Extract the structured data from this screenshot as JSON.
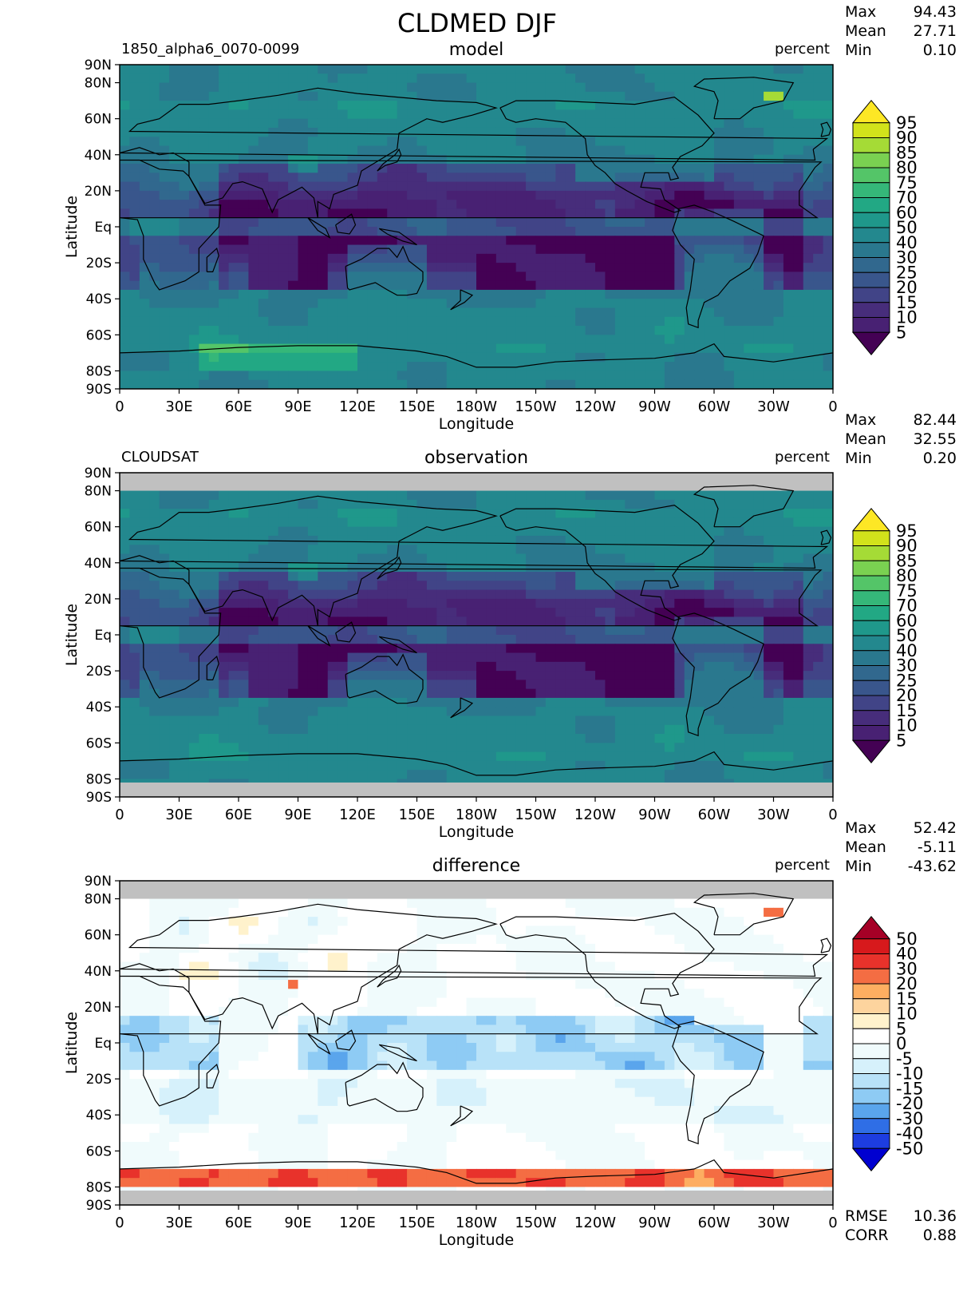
{
  "title": "CLDMED DJF",
  "chart_data": [
    {
      "type": "heatmap",
      "panel": "model",
      "title": "model",
      "left_label": "1850_alpha6_0070-0099",
      "units": "percent",
      "stats": {
        "max_label": "Max",
        "max": "94.43",
        "mean_label": "Mean",
        "mean": "27.71",
        "min_label": "Min",
        "min": "0.10"
      },
      "xlabel": "Longitude",
      "ylabel": "Latitude",
      "xticks": [
        "0",
        "30E",
        "60E",
        "90E",
        "120E",
        "150E",
        "180W",
        "150W",
        "120W",
        "90W",
        "60W",
        "30W",
        "0"
      ],
      "yticks": [
        "90N",
        "80N",
        "60N",
        "40N",
        "20N",
        "Eq",
        "20S",
        "40S",
        "60S",
        "80S",
        "90S"
      ],
      "xlim": [
        0,
        360
      ],
      "ylim": [
        -90,
        90
      ],
      "colorbar": [
        "95",
        "90",
        "85",
        "80",
        "75",
        "70",
        "60",
        "50",
        "40",
        "30",
        "25",
        "20",
        "15",
        "10",
        "5"
      ],
      "colors": [
        "#fde725",
        "#d2e21b",
        "#a5db36",
        "#7ad151",
        "#54c568",
        "#35b779",
        "#22a884",
        "#1f988b",
        "#23888e",
        "#2a788e",
        "#31688e",
        "#39568c",
        "#414487",
        "#472d7b",
        "#482173",
        "#440154"
      ],
      "missing_bands": []
    },
    {
      "type": "heatmap",
      "panel": "observation",
      "title": "observation",
      "left_label": "CLOUDSAT",
      "units": "percent",
      "stats": {
        "max_label": "Max",
        "max": "82.44",
        "mean_label": "Mean",
        "mean": "32.55",
        "min_label": "Min",
        "min": "0.20"
      },
      "xlabel": "Longitude",
      "ylabel": "Latitude",
      "xticks": [
        "0",
        "30E",
        "60E",
        "90E",
        "120E",
        "150E",
        "180W",
        "150W",
        "120W",
        "90W",
        "60W",
        "30W",
        "0"
      ],
      "yticks": [
        "90N",
        "80N",
        "60N",
        "40N",
        "20N",
        "Eq",
        "20S",
        "40S",
        "60S",
        "80S",
        "90S"
      ],
      "xlim": [
        0,
        360
      ],
      "ylim": [
        -90,
        90
      ],
      "colorbar": [
        "95",
        "90",
        "85",
        "80",
        "75",
        "70",
        "60",
        "50",
        "40",
        "30",
        "25",
        "20",
        "15",
        "10",
        "5"
      ],
      "colors": [
        "#fde725",
        "#d2e21b",
        "#a5db36",
        "#7ad151",
        "#54c568",
        "#35b779",
        "#22a884",
        "#1f988b",
        "#23888e",
        "#2a788e",
        "#31688e",
        "#39568c",
        "#414487",
        "#472d7b",
        "#482173",
        "#440154"
      ],
      "missing_bands": [
        [
          80,
          90
        ],
        [
          -90,
          -82
        ]
      ]
    },
    {
      "type": "heatmap",
      "panel": "difference",
      "title": "difference",
      "left_label": "",
      "units": "percent",
      "stats": {
        "max_label": "Max",
        "max": "52.42",
        "mean_label": "Mean",
        "mean": "-5.11",
        "min_label": "Min",
        "min": "-43.62"
      },
      "xlabel": "Longitude",
      "ylabel": "Latitude",
      "xticks": [
        "0",
        "30E",
        "60E",
        "90E",
        "120E",
        "150E",
        "180W",
        "150W",
        "120W",
        "90W",
        "60W",
        "30W",
        "0"
      ],
      "yticks": [
        "90N",
        "80N",
        "60N",
        "40N",
        "20N",
        "Eq",
        "20S",
        "40S",
        "60S",
        "80S",
        "90S"
      ],
      "xlim": [
        0,
        360
      ],
      "ylim": [
        -90,
        90
      ],
      "colorbar": [
        "50",
        "40",
        "30",
        "20",
        "15",
        "10",
        "5",
        "0",
        "-5",
        "-10",
        "-15",
        "-20",
        "-30",
        "-40",
        "-50"
      ],
      "colors": [
        "#a50026",
        "#d7191c",
        "#e8322b",
        "#f46d43",
        "#fdae61",
        "#fdd49e",
        "#fff2cc",
        "#ffffff",
        "#f0fbfc",
        "#d6f1fb",
        "#b8e2f8",
        "#8ecbf4",
        "#5aa5ec",
        "#2f6ee6",
        "#1d3de0",
        "#0000d0"
      ],
      "missing_bands": [
        [
          80,
          90
        ],
        [
          -90,
          -82
        ]
      ],
      "metrics": {
        "rmse_label": "RMSE",
        "rmse": "10.36",
        "corr_label": "CORR",
        "corr": "0.88"
      }
    }
  ]
}
